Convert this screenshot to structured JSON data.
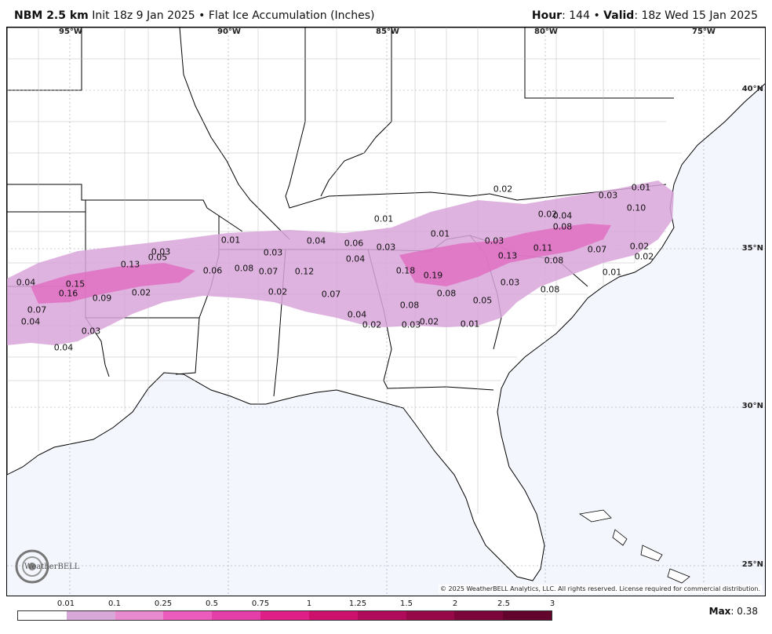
{
  "header": {
    "model": "NBM 2.5 km",
    "init": "Init 18z 9 Jan 2025",
    "separator": "•",
    "product": "Flat Ice Accumulation (Inches)",
    "hour_label": "Hour",
    "hour_value": "144",
    "valid_label": "Valid",
    "valid_value": "18z Wed 15 Jan 2025"
  },
  "map": {
    "longitude_labels": [
      "95°W",
      "90°W",
      "85°W",
      "80°W",
      "75°W"
    ],
    "latitude_labels": [
      "40°N",
      "35°N",
      "30°N",
      "25°N"
    ],
    "value_labels": [
      "0.04",
      "0.15",
      "0.16",
      "0.07",
      "0.04",
      "0.09",
      "0.03",
      "0.04",
      "0.13",
      "0.05",
      "0.03",
      "0.02",
      "0.01",
      "0.06",
      "0.08",
      "0.07",
      "0.03",
      "0.12",
      "0.02",
      "0.04",
      "0.06",
      "0.04",
      "0.07",
      "0.04",
      "0.02",
      "0.01",
      "0.03",
      "0.01",
      "0.18",
      "0.19",
      "0.08",
      "0.03",
      "0.08",
      "0.02",
      "0.05",
      "0.01",
      "0.02",
      "0.03",
      "0.13",
      "0.11",
      "0.08",
      "0.02",
      "0.04",
      "0.08",
      "0.07",
      "0.03",
      "0.08",
      "0.01",
      "0.03",
      "0.01",
      "0.10",
      "0.02",
      "0.02"
    ],
    "colors": {
      "ocean": "#f3f6fd",
      "land": "#ffffff",
      "border": "#000000",
      "county": "#a0a0a0",
      "ice_light": "#d9a6d9",
      "ice_mid": "#e06cc0"
    }
  },
  "branding": {
    "logo_text": "WeatherBELL",
    "copyright": "© 2025 WeatherBELL Analytics, LLC. All rights reserved. License required for commercial distribution."
  },
  "legend": {
    "ticks": [
      "0.01",
      "0.1",
      "0.25",
      "0.5",
      "0.75",
      "1",
      "1.25",
      "1.5",
      "2",
      "2.5",
      "3"
    ],
    "colors": [
      "#ffffff",
      "#d8a8d8",
      "#e88ad0",
      "#ec5cbc",
      "#e43fa8",
      "#e01e88",
      "#cc106c",
      "#b00a5a",
      "#960848",
      "#7c063a",
      "#62042c"
    ],
    "max_label": "Max",
    "max_value": "0.38"
  }
}
